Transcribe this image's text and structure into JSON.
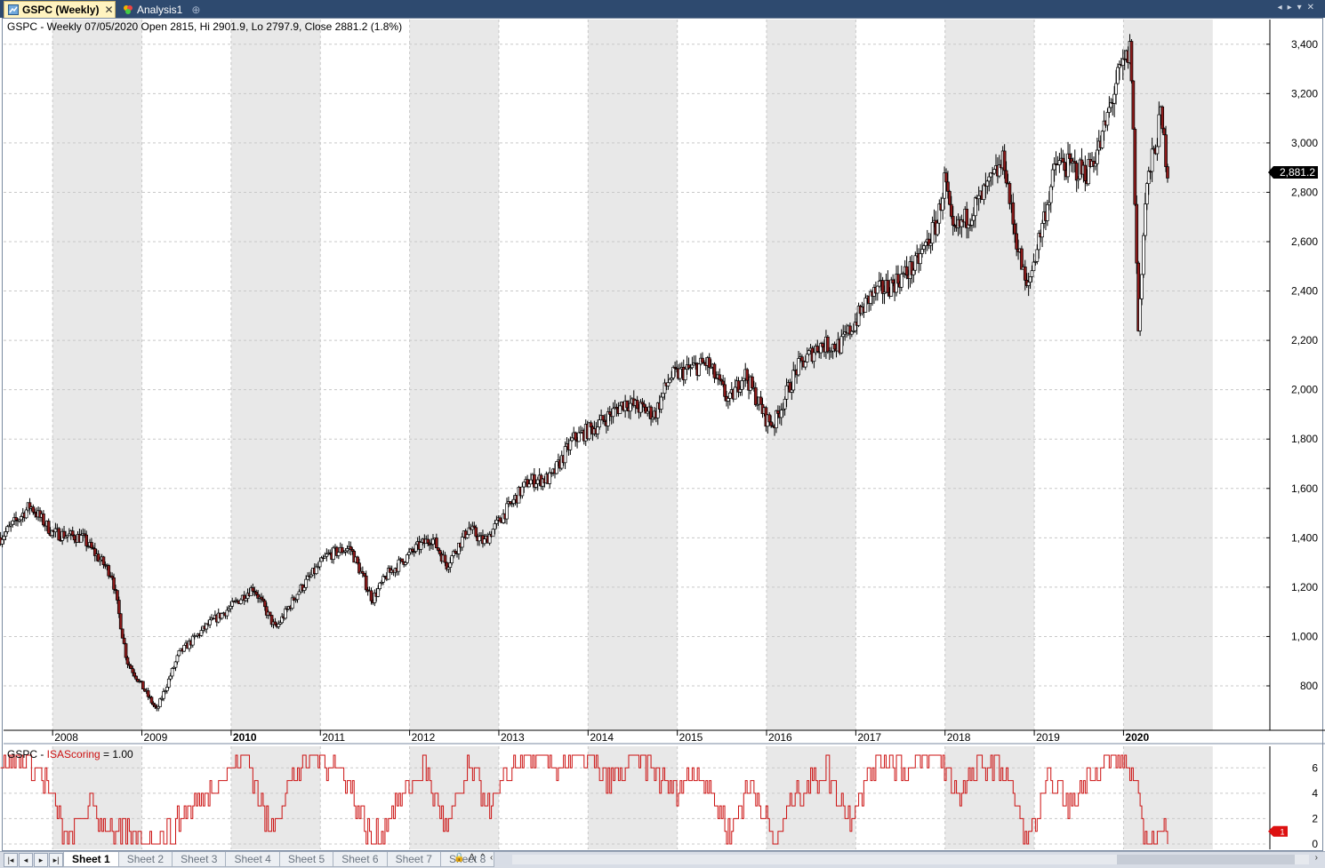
{
  "tabs": [
    {
      "label": "GSPC (Weekly)",
      "icon": "chart-icon",
      "active": true
    },
    {
      "label": "Analysis1",
      "icon": "analysis-icon",
      "active": false
    }
  ],
  "price_pane": {
    "header": "GSPC - Weekly 07/05/2020 Open 2815, Hi 2901.9, Lo 2797.9, Close 2881.2 (1.8%)",
    "last_value_label": "2,881.2",
    "y_ticks": [
      "800",
      "1,000",
      "1,200",
      "1,400",
      "1,600",
      "1,800",
      "2,000",
      "2,200",
      "2,400",
      "2,600",
      "2,800",
      "3,000",
      "3,200",
      "3,400"
    ],
    "x_ticks": [
      "2008",
      "2009",
      "2010",
      "2011",
      "2012",
      "2013",
      "2014",
      "2015",
      "2016",
      "2017",
      "2018",
      "2019",
      "2020"
    ],
    "bold_x_ticks": [
      "2010",
      "2020"
    ]
  },
  "indicator_pane": {
    "header_symbol": "GSPC - ",
    "header_name": "ISAScoring",
    "header_value": " = 1.00",
    "y_ticks": [
      "0",
      "2",
      "4",
      "6"
    ],
    "last_value_label": "1"
  },
  "sheets": {
    "tabs": [
      "Sheet 1",
      "Sheet 2",
      "Sheet 3",
      "Sheet 4",
      "Sheet 5",
      "Sheet 6",
      "Sheet 7",
      "Sheet 8"
    ],
    "active": "Sheet 1"
  },
  "colors": {
    "tabbar": "#2e4a6f",
    "down_candle": "#8b1a1a",
    "up_candle": "#ffffff",
    "indicator_line": "#cc1111",
    "shade": "#e8e8e8"
  },
  "chart_data": [
    {
      "type": "candlestick",
      "title": "GSPC - Weekly",
      "ylim": [
        620,
        3500
      ],
      "x": [
        "2007-06",
        "2007-10",
        "2008-01",
        "2008-05",
        "2008-09",
        "2008-11",
        "2009-03",
        "2009-06",
        "2009-10",
        "2010-01",
        "2010-04",
        "2010-07",
        "2010-10",
        "2011-02",
        "2011-05",
        "2011-08",
        "2011-10",
        "2012-02",
        "2012-04",
        "2012-06",
        "2012-09",
        "2012-11",
        "2013-02",
        "2013-05",
        "2013-08",
        "2013-11",
        "2014-02",
        "2014-06",
        "2014-10",
        "2014-12",
        "2015-05",
        "2015-08",
        "2015-10",
        "2016-01",
        "2016-02",
        "2016-05",
        "2016-08",
        "2016-11",
        "2017-03",
        "2017-06",
        "2017-09",
        "2017-12",
        "2018-01",
        "2018-02",
        "2018-06",
        "2018-09",
        "2018-10",
        "2018-12",
        "2019-04",
        "2019-06",
        "2019-08",
        "2019-10",
        "2019-12",
        "2020-02",
        "2020-03",
        "2020-04",
        "2020-06",
        "2020-07"
      ],
      "values": [
        1400,
        1530,
        1420,
        1400,
        1250,
        900,
        700,
        930,
        1050,
        1120,
        1200,
        1030,
        1180,
        1330,
        1360,
        1150,
        1250,
        1360,
        1400,
        1290,
        1440,
        1380,
        1510,
        1630,
        1640,
        1800,
        1850,
        1950,
        1900,
        2050,
        2110,
        1950,
        2070,
        1880,
        1860,
        2080,
        2180,
        2180,
        2380,
        2430,
        2500,
        2680,
        2860,
        2620,
        2780,
        2930,
        2700,
        2400,
        2920,
        2900,
        2880,
        3000,
        3240,
        3380,
        2240,
        2800,
        3100,
        2881
      ]
    },
    {
      "type": "line",
      "title": "GSPC - ISAScoring",
      "ylim": [
        0,
        7
      ],
      "x": [
        "2007-06",
        "2007-09",
        "2007-12",
        "2008-03",
        "2008-06",
        "2008-09",
        "2009-01",
        "2009-05",
        "2009-08",
        "2009-11",
        "2010-03",
        "2010-06",
        "2010-09",
        "2010-12",
        "2011-04",
        "2011-08",
        "2011-11",
        "2012-03",
        "2012-06",
        "2012-09",
        "2012-12",
        "2013-04",
        "2013-08",
        "2013-12",
        "2014-04",
        "2014-08",
        "2014-12",
        "2015-04",
        "2015-08",
        "2015-11",
        "2016-02",
        "2016-05",
        "2016-09",
        "2016-12",
        "2017-04",
        "2017-08",
        "2017-12",
        "2018-03",
        "2018-06",
        "2018-09",
        "2018-12",
        "2019-03",
        "2019-06",
        "2019-09",
        "2019-12",
        "2020-02",
        "2020-04",
        "2020-07"
      ],
      "values": [
        6,
        7,
        5,
        0,
        3,
        1,
        0,
        1,
        3,
        5,
        7,
        1,
        5,
        7,
        6,
        0,
        3,
        6,
        1,
        6,
        3,
        7,
        6,
        7,
        5,
        7,
        4,
        6,
        1,
        5,
        0,
        4,
        6,
        2,
        7,
        6,
        7,
        4,
        6,
        6,
        0,
        5,
        3,
        6,
        7,
        6,
        0,
        1
      ]
    }
  ]
}
